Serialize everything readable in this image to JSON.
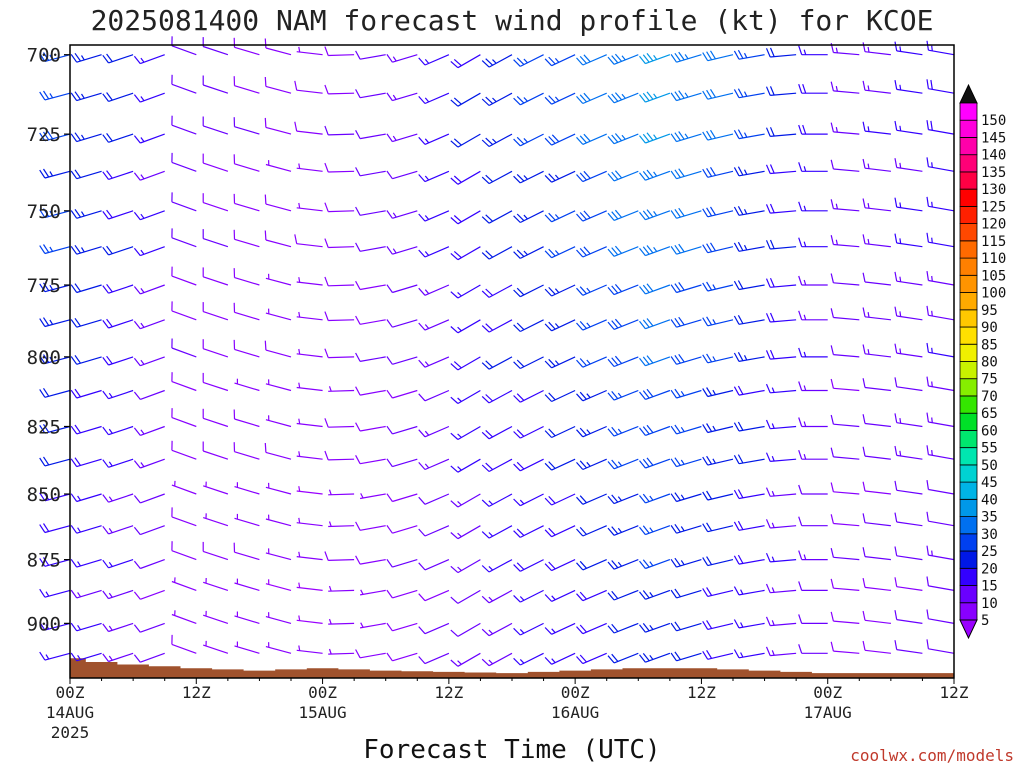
{
  "chart_data": {
    "type": "wind-barb-time-height",
    "title": "2025081400 NAM forecast wind profile (kt) for KCOE",
    "xlabel": "Forecast Time (UTC)",
    "ylabel": "",
    "y_axis_pressure_hpa": {
      "ticks": [
        700,
        725,
        750,
        775,
        800,
        825,
        850,
        875,
        900
      ],
      "range": [
        697,
        922
      ],
      "direction": "pressure decreases upward"
    },
    "x_axis": {
      "start": "2025-08-14T00Z",
      "end": "2025-08-17T12Z",
      "step_hours": 3,
      "ticks": [
        {
          "hour": 0,
          "top": "00Z",
          "mid": "14AUG",
          "bot": "2025"
        },
        {
          "hour": 12,
          "top": "12Z",
          "mid": "",
          "bot": ""
        },
        {
          "hour": 24,
          "top": "00Z",
          "mid": "15AUG",
          "bot": ""
        },
        {
          "hour": 36,
          "top": "12Z",
          "mid": "",
          "bot": ""
        },
        {
          "hour": 48,
          "top": "00Z",
          "mid": "16AUG",
          "bot": ""
        },
        {
          "hour": 60,
          "top": "12Z",
          "mid": "",
          "bot": ""
        },
        {
          "hour": 72,
          "top": "00Z",
          "mid": "17AUG",
          "bot": ""
        },
        {
          "hour": 84,
          "top": "12Z",
          "mid": "",
          "bot": ""
        }
      ]
    },
    "pressure_levels_hpa": [
      700,
      712,
      725,
      737,
      750,
      762,
      775,
      787,
      800,
      812,
      825,
      837,
      850,
      862,
      875,
      887,
      900,
      912
    ],
    "wind_direction_deg_by_hour": [
      [
        0,
        255
      ],
      [
        9,
        250
      ],
      [
        12,
        290
      ],
      [
        21,
        285
      ],
      [
        30,
        260
      ],
      [
        39,
        240
      ],
      [
        48,
        245
      ],
      [
        57,
        250
      ],
      [
        66,
        260
      ],
      [
        75,
        275
      ],
      [
        84,
        280
      ]
    ],
    "wind_speed_kt_by_hour": [
      [
        0,
        28
      ],
      [
        6,
        22
      ],
      [
        12,
        12
      ],
      [
        24,
        8
      ],
      [
        33,
        14
      ],
      [
        42,
        24
      ],
      [
        48,
        28
      ],
      [
        57,
        38
      ],
      [
        63,
        32
      ],
      [
        69,
        22
      ],
      [
        75,
        14
      ],
      [
        84,
        18
      ]
    ],
    "surface_pressure_hpa_by_hour": [
      [
        0,
        914
      ],
      [
        2,
        915
      ],
      [
        4,
        916
      ],
      [
        8,
        917
      ],
      [
        12,
        918
      ],
      [
        18,
        919
      ],
      [
        24,
        918
      ],
      [
        30,
        919
      ],
      [
        36,
        919.5
      ],
      [
        42,
        920
      ],
      [
        48,
        919
      ],
      [
        54,
        918
      ],
      [
        60,
        918
      ],
      [
        66,
        919
      ],
      [
        72,
        920
      ],
      [
        78,
        920
      ],
      [
        84,
        920
      ]
    ],
    "colorbar": {
      "label_unit": "kt",
      "levels": [
        5,
        10,
        15,
        20,
        25,
        30,
        35,
        40,
        45,
        50,
        55,
        60,
        65,
        70,
        75,
        80,
        85,
        90,
        95,
        100,
        105,
        110,
        115,
        120,
        125,
        130,
        135,
        140,
        145,
        150
      ],
      "colors": [
        "#8800ff",
        "#6a00ff",
        "#3300ff",
        "#0018e6",
        "#0040f0",
        "#0070f0",
        "#0098e8",
        "#00b4e6",
        "#00d2d2",
        "#00e6b0",
        "#00e66e",
        "#00e028",
        "#34e600",
        "#86ee00",
        "#c8f200",
        "#f0f000",
        "#ffe000",
        "#ffc800",
        "#ffaa00",
        "#ff9400",
        "#ff8000",
        "#ff6a00",
        "#ff4800",
        "#ff2000",
        "#ff0000",
        "#ff0044",
        "#ff0077",
        "#ff00aa",
        "#ff00dd",
        "#ff00ff"
      ],
      "below_color": "#9a00ff",
      "above_color": "#111111"
    },
    "terrain_color": "#a0522d",
    "credit": "coolwx.com/models"
  }
}
